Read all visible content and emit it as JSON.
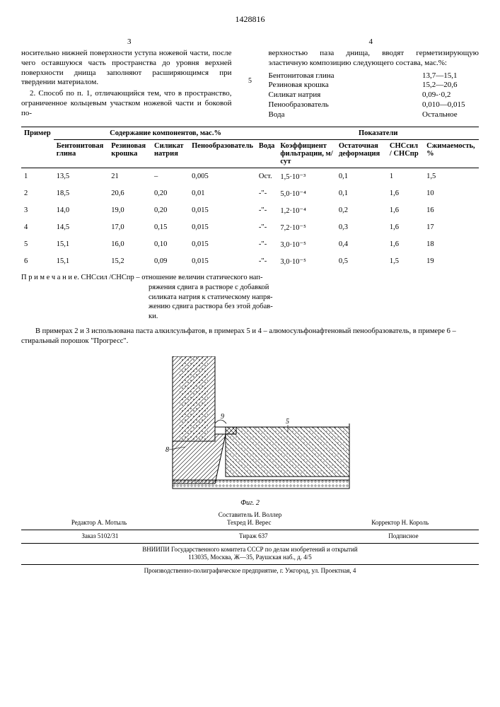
{
  "doc_number": "1428816",
  "page_left": "3",
  "page_right": "4",
  "left_col": "носительно нижней поверхности уступа ножевой части, после чего оставшуюся часть пространства до уровня верхней поверхности днища заполняют расширяющимся при твердении материалом.",
  "left_col2": "2. Способ по п. 1, отличающийся тем, что в пространство, ограниченное кольцевым участком ножевой части и боковой по-",
  "side_num": "5",
  "right_col": "верхностью паза днища, вводят герметизирующую эластичную композицию следующего состава, мас.%:",
  "composition": [
    {
      "name": "Бентонитовая глина",
      "val": "13,7—15,1"
    },
    {
      "name": "Резиновая крошка",
      "val": "15,2—20,6"
    },
    {
      "name": "Силикат натрия",
      "val": "0,09-·0,2"
    },
    {
      "name": "Пенообразователь",
      "val": "0,010—0,015"
    },
    {
      "name": "Вода",
      "val": "Остальное"
    }
  ],
  "table": {
    "head1": [
      "Пример",
      "Содержание компонентов, мас.%",
      "Показатели"
    ],
    "head2": [
      "Бентонитовая глина",
      "Резиновая крошка",
      "Силикат натрия",
      "Пенообразователь",
      "Вода",
      "Коэффициент фильтрации, м/сут",
      "Остаточная деформация",
      "СНСсил / СНСпр",
      "Сжимаемость, %"
    ],
    "rows": [
      [
        "1",
        "13,5",
        "21",
        "–",
        "0,005",
        "Ост.",
        "1,5·10⁻³",
        "0,1",
        "1",
        "1,5"
      ],
      [
        "2",
        "18,5",
        "20,6",
        "0,20",
        "0,01",
        "-\"-",
        "5,0·10⁻⁴",
        "0,1",
        "1,6",
        "10"
      ],
      [
        "3",
        "14,0",
        "19,0",
        "0,20",
        "0,015",
        "-\"-",
        "1,2·10⁻⁴",
        "0,2",
        "1,6",
        "16"
      ],
      [
        "4",
        "14,5",
        "17,0",
        "0,15",
        "0,015",
        "-\"-",
        "7,2·10⁻⁵",
        "0,3",
        "1,6",
        "17"
      ],
      [
        "5",
        "15,1",
        "16,0",
        "0,10",
        "0,015",
        "-\"-",
        "3,0·10⁻⁵",
        "0,4",
        "1,6",
        "18"
      ],
      [
        "6",
        "15,1",
        "15,2",
        "0,09",
        "0,015",
        "-\"-",
        "3,0·10⁻⁵",
        "0,5",
        "1,5",
        "19"
      ]
    ]
  },
  "note_label": "П р и м е ч а н и е.  СНСсил /СНСпр",
  "note_text1": "– отношение величин статического нап-",
  "note_text2": "ряжения сдвига в растворе с добавкой",
  "note_text3": "силиката натрия к статическому напря-",
  "note_text4": "жению сдвига раствора без этой добав-",
  "note_text5": "ки.",
  "after_note": "В примерах 2 и 3 использована паста алкилсульфатов, в примерах 5 и 4 – алюмосульфонафтеновый пенообразователь, в примере 6 – стиральный порошок \"Прогресс\".",
  "fig_caption": "Фиг. 2",
  "fig_labels": {
    "l8": "8",
    "l9": "9",
    "l5": "5"
  },
  "credits": {
    "author": "Составитель И. Воллер",
    "editor": "Редактор А. Мотыль",
    "tech": "Техред И. Верес",
    "corr": "Корректор Н. Король",
    "order": "Заказ 5102/31",
    "tirazh": "Тираж 637",
    "sub": "Подписное",
    "line1": "ВНИИПИ Государственного комитета СССР по делам изобретений и открытий",
    "line2": "113035, Москва, Ж—35, Раушская наб., д. 4/5",
    "line3": "Производственно-полиграфическое предприятие, г. Ужгород, ул. Проектная, 4"
  }
}
